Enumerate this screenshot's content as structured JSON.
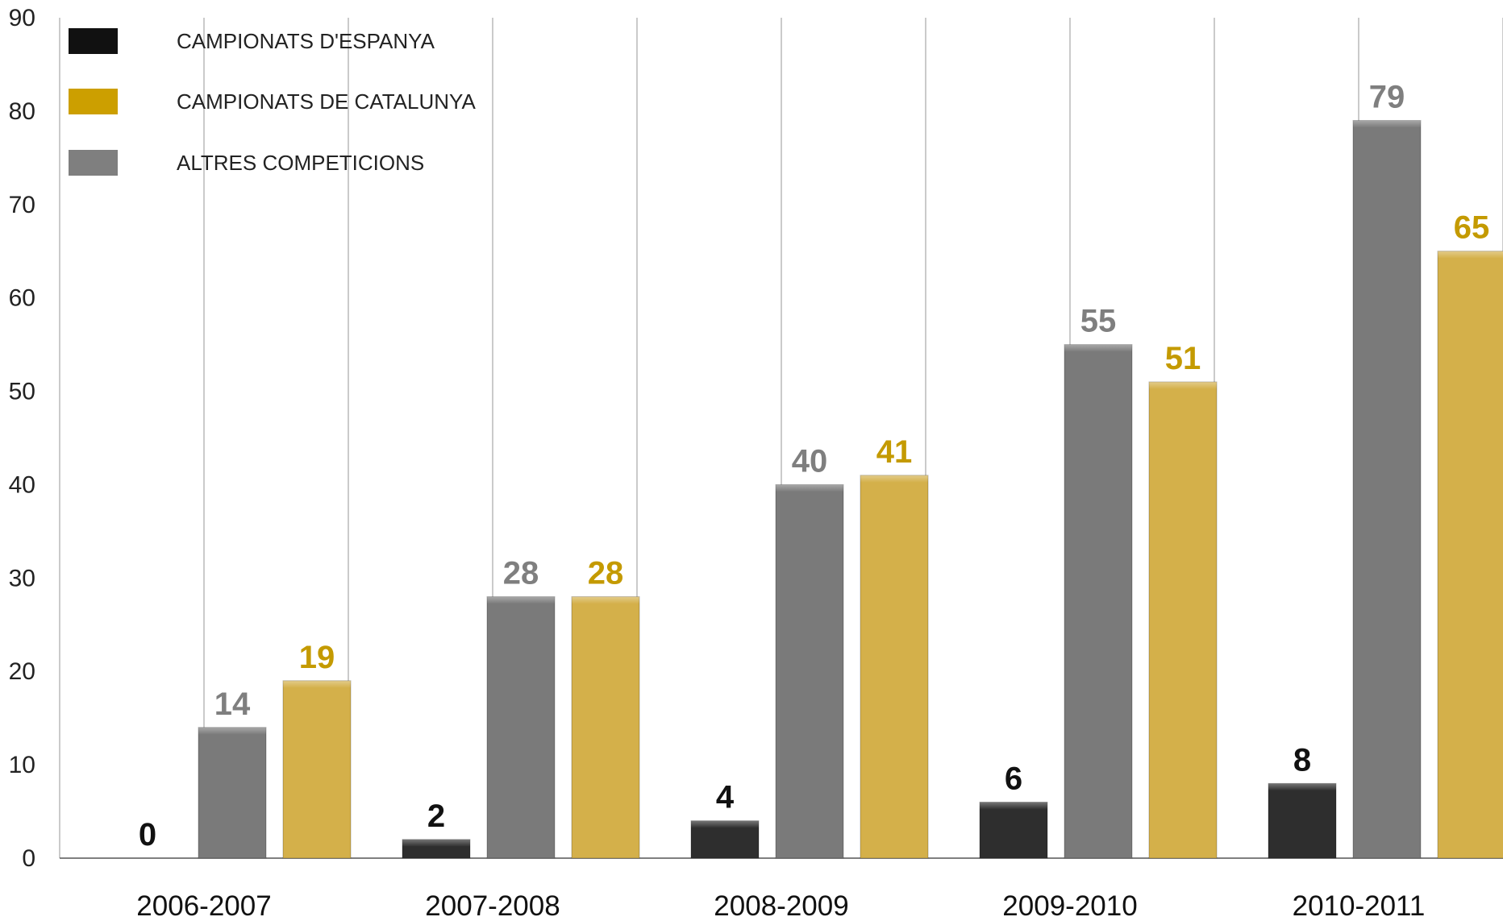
{
  "chart_data": {
    "type": "bar",
    "categories": [
      "2006-2007",
      "2007-2008",
      "2008-2009",
      "2009-2010",
      "2010-2011"
    ],
    "series": [
      {
        "name": "CAMPIONATS D'ESPANYA",
        "color": "#2e2e2e",
        "label_color": "#111111",
        "values": [
          0,
          2,
          4,
          6,
          8
        ]
      },
      {
        "name": "ALTRES COMPETICIONS",
        "color": "#7a7a7a",
        "label_color": "#7f7f7f",
        "values": [
          14,
          28,
          40,
          55,
          79
        ]
      },
      {
        "name": "CAMPIONATS DE CATALUNYA",
        "color": "#d4b04a",
        "label_color": "#c49a00",
        "values": [
          19,
          28,
          41,
          51,
          65
        ]
      }
    ],
    "legend": [
      {
        "name": "CAMPIONATS D'ESPANYA",
        "color": "#111111"
      },
      {
        "name": "CAMPIONATS DE CATALUNYA",
        "color": "#cc9f00"
      },
      {
        "name": "ALTRES COMPETICIONS",
        "color": "#7f7f7f"
      }
    ],
    "legend_position": "top-left",
    "yticks": [
      "0",
      "10",
      "20",
      "30",
      "40",
      "50",
      "60",
      "70",
      "80",
      "90"
    ],
    "ylim": [
      0,
      90
    ],
    "grid": "vertical",
    "title": "",
    "xlabel": "",
    "ylabel": ""
  }
}
